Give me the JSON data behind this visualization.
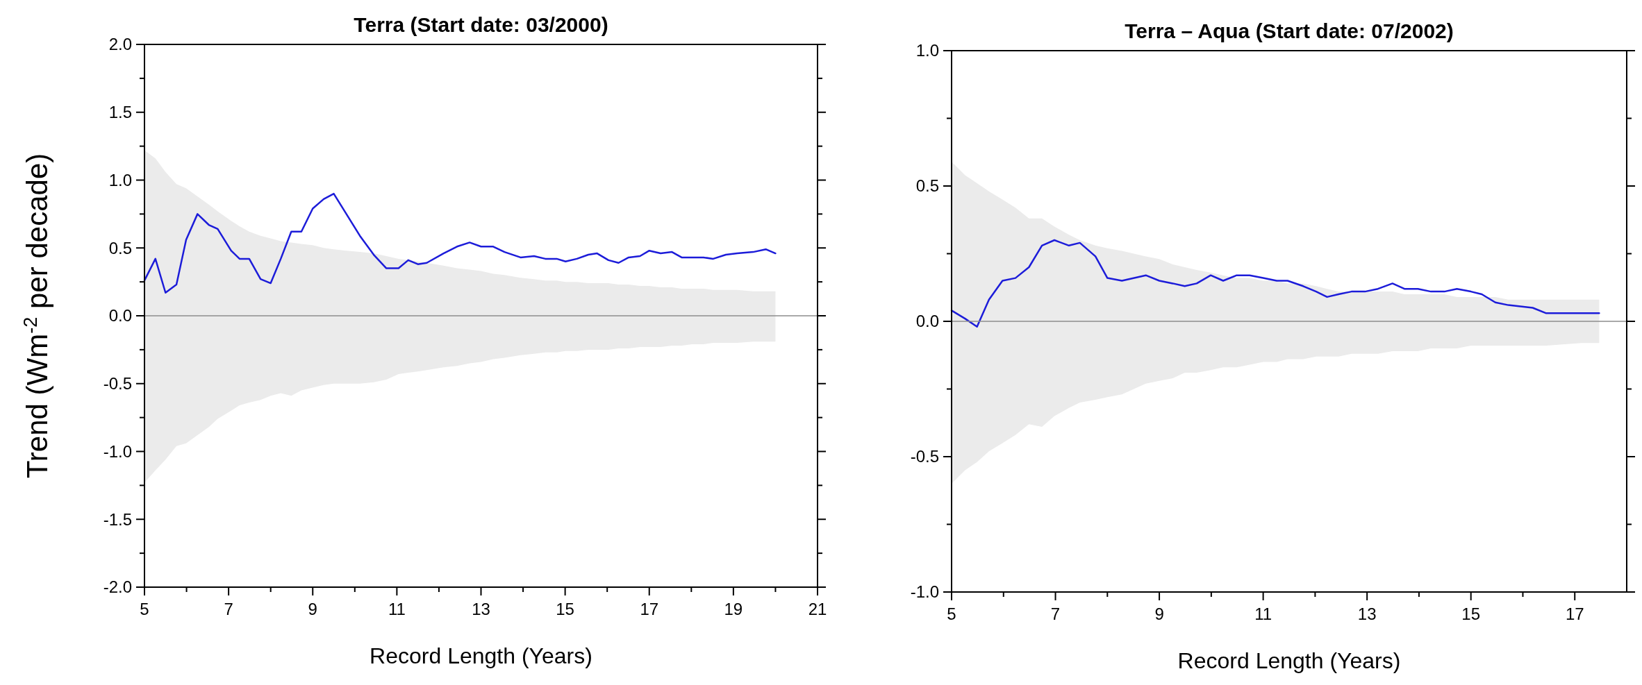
{
  "chart_data": [
    {
      "type": "line",
      "title": "Terra (Start date: 03/2000)",
      "xlabel": "Record Length (Years)",
      "ylabel": "Trend (Wm$^{-2}$ per decade)",
      "xlim": [
        5,
        21
      ],
      "xticks": [
        5,
        {
          "value": 6,
          "label": null
        },
        7,
        {
          "value": 8,
          "label": null
        },
        9,
        {
          "value": 10,
          "label": null
        },
        11,
        {
          "value": 12,
          "label": null
        },
        13,
        {
          "value": 14,
          "label": null
        },
        15,
        {
          "value": 16,
          "label": null
        },
        17,
        {
          "value": 18,
          "label": null
        },
        19,
        {
          "value": 20,
          "label": null
        },
        21
      ],
      "ylim": [
        -2,
        2
      ],
      "yticks": [
        {
          "value": -2,
          "label": "-2.0"
        },
        {
          "value": -1.75,
          "label": null
        },
        {
          "value": -1.5,
          "label": "-1.5"
        },
        {
          "value": -1.25,
          "label": null
        },
        {
          "value": -1,
          "label": "-1.0"
        },
        {
          "value": -0.75,
          "label": null
        },
        {
          "value": -0.5,
          "label": "-0.5"
        },
        {
          "value": -0.25,
          "label": null
        },
        {
          "value": 0,
          "label": "0.0"
        },
        {
          "value": 0.25,
          "label": null
        },
        {
          "value": 0.5,
          "label": "0.5"
        },
        {
          "value": 0.75,
          "label": null
        },
        {
          "value": 1,
          "label": "1.0"
        },
        {
          "value": 1.25,
          "label": null
        },
        {
          "value": 1.5,
          "label": "1.5"
        },
        {
          "value": 1.75,
          "label": null
        },
        {
          "value": 2,
          "label": "2.0"
        }
      ],
      "grid": false,
      "marker": "none",
      "line_style": "solid",
      "ref_lines": [
        {
          "axis": "y",
          "value": 0,
          "color": "#8c8c8c"
        }
      ],
      "series": [
        {
          "color": "#1c1cd9",
          "x": [
            5,
            5.26,
            5.5,
            5.76,
            5.99,
            6.26,
            6.53,
            6.74,
            7.06,
            7.26,
            7.49,
            7.76,
            8.0,
            8.24,
            8.49,
            8.73,
            9.0,
            9.26,
            9.5,
            9.8,
            10.12,
            10.45,
            10.75,
            11.04,
            11.27,
            11.5,
            11.71,
            12.11,
            12.43,
            12.73,
            13.0,
            13.29,
            13.56,
            13.94,
            14.26,
            14.53,
            14.8,
            15.01,
            15.28,
            15.55,
            15.76,
            16.03,
            16.27,
            16.51,
            16.78,
            17.0,
            17.27,
            17.54,
            17.77,
            18.02,
            18.29,
            18.52,
            18.82,
            19.09,
            19.47,
            19.77,
            20.0
          ],
          "values": [
            0.26,
            0.42,
            0.17,
            0.23,
            0.56,
            0.75,
            0.67,
            0.64,
            0.48,
            0.42,
            0.42,
            0.27,
            0.24,
            0.42,
            0.62,
            0.62,
            0.79,
            0.86,
            0.9,
            0.75,
            0.59,
            0.45,
            0.35,
            0.35,
            0.41,
            0.38,
            0.39,
            0.46,
            0.51,
            0.54,
            0.51,
            0.51,
            0.47,
            0.43,
            0.44,
            0.42,
            0.42,
            0.4,
            0.42,
            0.45,
            0.46,
            0.41,
            0.39,
            0.43,
            0.44,
            0.48,
            0.46,
            0.47,
            0.43,
            0.43,
            0.43,
            0.42,
            0.45,
            0.46,
            0.47,
            0.49,
            0.46
          ],
          "upper": [
            1.22,
            1.16,
            1.06,
            0.97,
            0.94,
            0.88,
            0.82,
            0.77,
            0.7,
            0.66,
            0.62,
            0.59,
            0.57,
            0.55,
            0.54,
            0.53,
            0.52,
            0.5,
            0.49,
            0.48,
            0.47,
            0.46,
            0.44,
            0.42,
            0.41,
            0.4,
            0.39,
            0.37,
            0.35,
            0.34,
            0.33,
            0.31,
            0.3,
            0.28,
            0.27,
            0.26,
            0.26,
            0.25,
            0.25,
            0.24,
            0.24,
            0.24,
            0.23,
            0.23,
            0.22,
            0.22,
            0.21,
            0.21,
            0.2,
            0.2,
            0.2,
            0.19,
            0.19,
            0.19,
            0.18,
            0.18,
            0.18
          ],
          "lower": [
            -1.23,
            -1.14,
            -1.06,
            -0.96,
            -0.94,
            -0.88,
            -0.82,
            -0.76,
            -0.7,
            -0.66,
            -0.64,
            -0.62,
            -0.59,
            -0.57,
            -0.59,
            -0.55,
            -0.53,
            -0.51,
            -0.5,
            -0.5,
            -0.5,
            -0.49,
            -0.47,
            -0.43,
            -0.42,
            -0.41,
            -0.4,
            -0.38,
            -0.37,
            -0.35,
            -0.34,
            -0.32,
            -0.31,
            -0.29,
            -0.28,
            -0.27,
            -0.27,
            -0.26,
            -0.26,
            -0.25,
            -0.25,
            -0.25,
            -0.24,
            -0.24,
            -0.23,
            -0.23,
            -0.23,
            -0.22,
            -0.22,
            -0.21,
            -0.21,
            -0.2,
            -0.2,
            -0.2,
            -0.19,
            -0.19,
            -0.19
          ]
        }
      ]
    },
    {
      "type": "line",
      "title": "Terra – Aqua (Start date: 07/2002)",
      "xlabel": "Record Length (Years)",
      "xlim": [
        5,
        18
      ],
      "xticks": [
        5,
        {
          "value": 6,
          "label": null
        },
        7,
        {
          "value": 8,
          "label": null
        },
        9,
        {
          "value": 10,
          "label": null
        },
        11,
        {
          "value": 12,
          "label": null
        },
        13,
        {
          "value": 14,
          "label": null
        },
        15,
        {
          "value": 16,
          "label": null
        },
        17
      ],
      "ylim": [
        -1,
        1
      ],
      "yticks": [
        {
          "value": -1,
          "label": "-1.0"
        },
        {
          "value": -0.75,
          "label": null
        },
        {
          "value": -0.5,
          "label": "-0.5"
        },
        {
          "value": -0.25,
          "label": null
        },
        {
          "value": 0,
          "label": "0.0"
        },
        {
          "value": 0.25,
          "label": null
        },
        {
          "value": 0.5,
          "label": "0.5"
        },
        {
          "value": 0.75,
          "label": null
        },
        {
          "value": 1,
          "label": "1.0"
        }
      ],
      "grid": false,
      "marker": "none",
      "line_style": "solid",
      "ref_lines": [
        {
          "axis": "y",
          "value": 0,
          "color": "#8c8c8c"
        }
      ],
      "series": [
        {
          "color": "#1c1cd9",
          "x": [
            5,
            5.26,
            5.49,
            5.72,
            5.98,
            6.23,
            6.49,
            6.74,
            6.98,
            7.26,
            7.47,
            7.77,
            8.0,
            8.28,
            8.74,
            9.0,
            9.26,
            9.49,
            9.72,
            9.99,
            10.23,
            10.49,
            10.74,
            11.0,
            11.26,
            11.47,
            11.77,
            12.02,
            12.23,
            12.45,
            12.7,
            12.96,
            13.21,
            13.49,
            13.72,
            13.98,
            14.23,
            14.49,
            14.73,
            15.0,
            15.21,
            15.47,
            15.72,
            16.19,
            16.45,
            17.13,
            17.47
          ],
          "values": [
            0.04,
            0.01,
            -0.02,
            0.08,
            0.15,
            0.16,
            0.2,
            0.28,
            0.3,
            0.28,
            0.29,
            0.24,
            0.16,
            0.15,
            0.17,
            0.15,
            0.14,
            0.13,
            0.14,
            0.17,
            0.15,
            0.17,
            0.17,
            0.16,
            0.15,
            0.15,
            0.13,
            0.11,
            0.09,
            0.1,
            0.11,
            0.11,
            0.12,
            0.14,
            0.12,
            0.12,
            0.11,
            0.11,
            0.12,
            0.11,
            0.1,
            0.07,
            0.06,
            0.05,
            0.03,
            0.03,
            0.03
          ],
          "upper": [
            0.59,
            0.54,
            0.51,
            0.48,
            0.45,
            0.42,
            0.38,
            0.38,
            0.35,
            0.32,
            0.3,
            0.28,
            0.27,
            0.26,
            0.24,
            0.23,
            0.21,
            0.2,
            0.19,
            0.18,
            0.17,
            0.16,
            0.16,
            0.15,
            0.15,
            0.14,
            0.14,
            0.13,
            0.12,
            0.11,
            0.11,
            0.11,
            0.11,
            0.11,
            0.1,
            0.1,
            0.1,
            0.1,
            0.09,
            0.09,
            0.09,
            0.09,
            0.08,
            0.08,
            0.08,
            0.08,
            0.08
          ],
          "lower": [
            -0.6,
            -0.55,
            -0.52,
            -0.48,
            -0.45,
            -0.42,
            -0.38,
            -0.39,
            -0.35,
            -0.32,
            -0.3,
            -0.29,
            -0.28,
            -0.27,
            -0.23,
            -0.22,
            -0.21,
            -0.19,
            -0.19,
            -0.18,
            -0.17,
            -0.17,
            -0.16,
            -0.15,
            -0.15,
            -0.14,
            -0.14,
            -0.13,
            -0.13,
            -0.13,
            -0.12,
            -0.12,
            -0.12,
            -0.11,
            -0.11,
            -0.11,
            -0.1,
            -0.1,
            -0.1,
            -0.09,
            -0.09,
            -0.09,
            -0.09,
            -0.09,
            -0.09,
            -0.08,
            -0.08
          ]
        }
      ]
    }
  ]
}
